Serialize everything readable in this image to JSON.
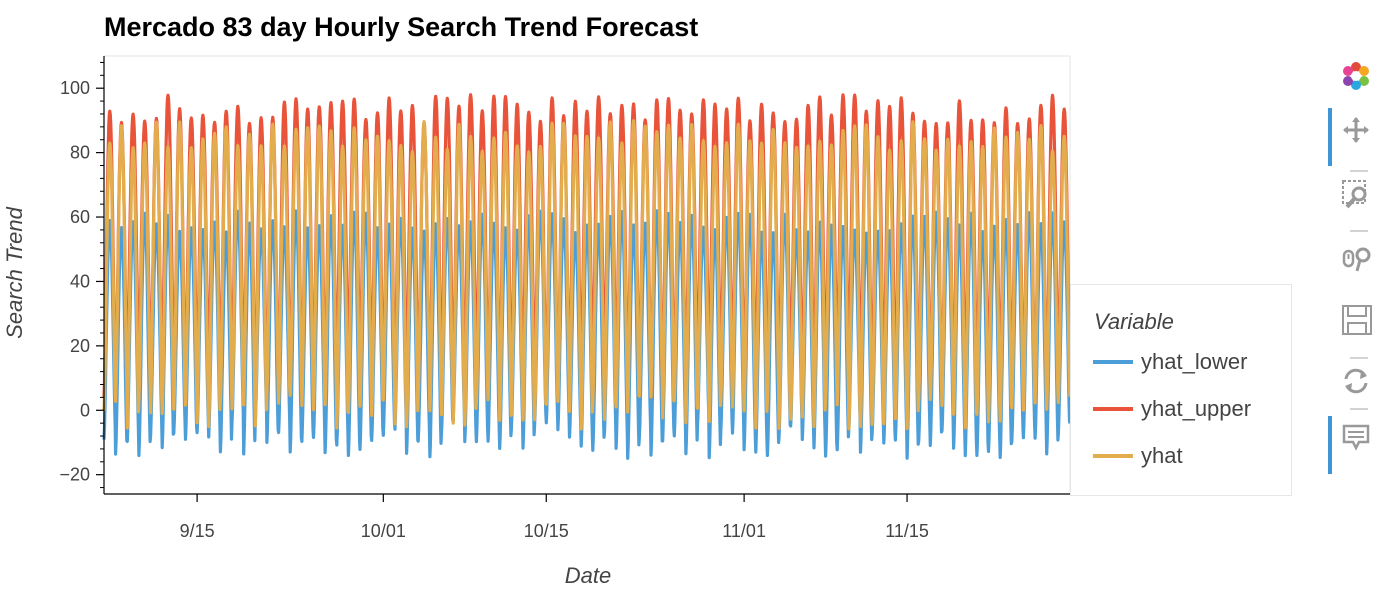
{
  "chart_data": {
    "type": "line",
    "title": "Mercado 83 day Hourly Search Trend Forecast",
    "xlabel": "Date",
    "ylabel": "Search Trend",
    "x_start": "2020-09-07",
    "x_end": "2020-11-29",
    "x_ticks": [
      "9/15",
      "10/01",
      "10/15",
      "11/01",
      "11/15"
    ],
    "y_ticks": [
      -20,
      0,
      20,
      40,
      60,
      80,
      100
    ],
    "ylim": [
      -26,
      110
    ],
    "legend_title": "Variable",
    "legend_position": "right",
    "series": [
      {
        "name": "yhat_lower",
        "color": "#4c9ed9",
        "pattern": "daily cycle",
        "daily_min_range": [
          -15,
          -3
        ],
        "daily_max_range": [
          55,
          62
        ]
      },
      {
        "name": "yhat_upper",
        "color": "#e8533a",
        "pattern": "daily cycle",
        "daily_min_range": [
          4,
          14
        ],
        "daily_max_range": [
          89,
          98
        ]
      },
      {
        "name": "yhat",
        "color": "#e3ac4c",
        "pattern": "daily cycle",
        "daily_min_range": [
          -6,
          5
        ],
        "daily_max_range": [
          80,
          90
        ]
      }
    ]
  },
  "toolbar": {
    "tools": [
      {
        "name": "bokeh-logo-icon",
        "active": false
      },
      {
        "name": "pan-icon",
        "active": true
      },
      {
        "name": "box-zoom-icon",
        "active": false
      },
      {
        "name": "wheel-zoom-icon",
        "active": false
      },
      {
        "name": "save-icon",
        "active": false
      },
      {
        "name": "reset-icon",
        "active": false
      },
      {
        "name": "hover-icon",
        "active": true
      }
    ]
  }
}
